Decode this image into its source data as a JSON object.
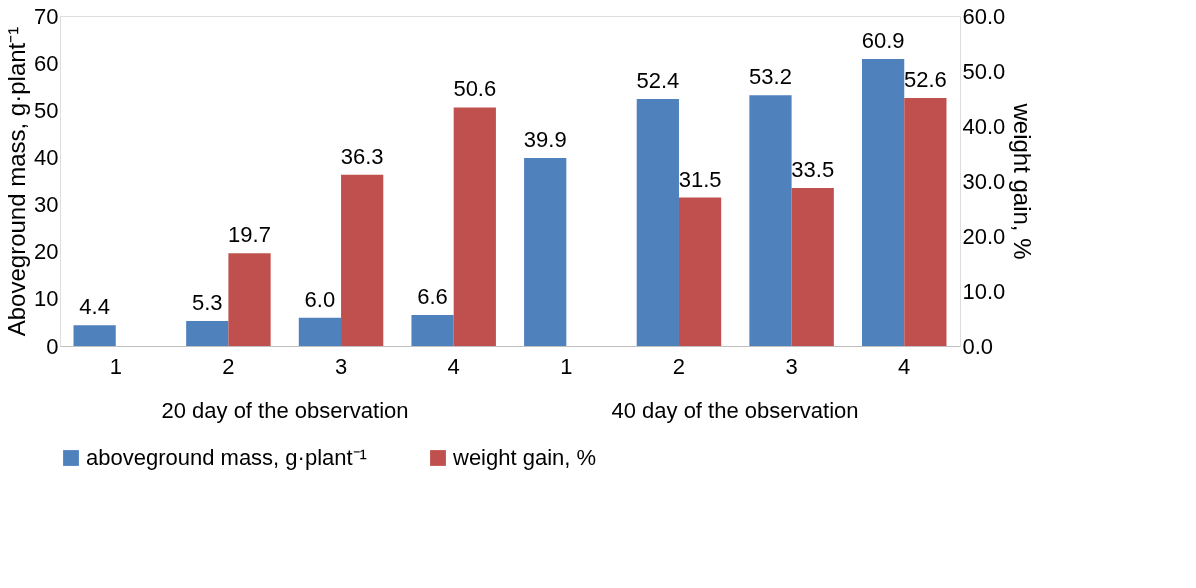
{
  "chart_data": {
    "type": "bar",
    "categories": [
      "1",
      "2",
      "3",
      "4",
      "1",
      "2",
      "3",
      "4"
    ],
    "series": [
      {
        "name": "aboveground mass, g·plant⁻¹",
        "color": "#4f81bd",
        "values": [
          4.4,
          5.3,
          6.0,
          6.6,
          39.9,
          52.4,
          53.2,
          60.9
        ],
        "value_labels": [
          "4.4",
          "5.3",
          "6.0",
          "6.6",
          "39.9",
          "52.4",
          "53.2",
          "60.9"
        ]
      },
      {
        "name": "weight gain, %",
        "color": "#c0504d",
        "values": [
          null,
          19.7,
          36.3,
          50.6,
          null,
          31.5,
          33.5,
          52.6
        ],
        "value_labels": [
          null,
          "19.7",
          "36.3",
          "50.6",
          null,
          "31.5",
          "33.5",
          "52.6"
        ]
      }
    ],
    "ylabel": "Aboveground mass, g·plant⁻¹",
    "y2label": "weight gain, %",
    "ylim": [
      0,
      70
    ],
    "yticks": [
      0,
      10,
      20,
      30,
      40,
      50,
      60,
      70
    ],
    "y2lim": [
      0,
      60
    ],
    "y2ticks": [
      {
        "value": 0,
        "label": "0.0"
      },
      {
        "value": 10,
        "label": "10.0"
      },
      {
        "value": 20,
        "label": "20.0"
      },
      {
        "value": 30,
        "label": "30.0"
      },
      {
        "value": 40,
        "label": "40.0"
      },
      {
        "value": 50,
        "label": "50.0"
      },
      {
        "value": 60,
        "label": "60.0"
      }
    ],
    "annotations": [
      "20 day of the observation",
      "40 day of the observation"
    ],
    "legend": "bottom",
    "grid": false
  }
}
